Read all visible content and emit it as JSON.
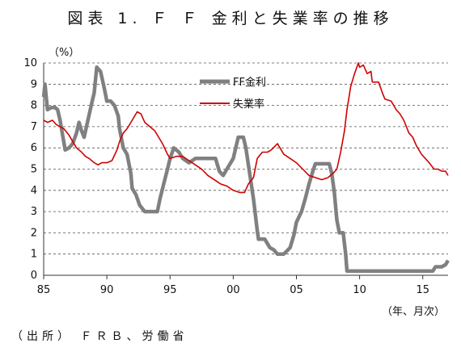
{
  "title": "図表 1. Ｆ Ｆ 金利と失業率の推移",
  "unit_label": "（%）",
  "x_unit_label": "（年、月次）",
  "source": "（出所） ＦＲＢ、労働省",
  "chart_data": {
    "type": "line",
    "ylim": [
      0,
      10
    ],
    "xlim": [
      1985,
      2017
    ],
    "y_ticks": [
      "0",
      "1",
      "2",
      "3",
      "4",
      "5",
      "6",
      "7",
      "8",
      "9",
      "10"
    ],
    "x_ticks": [
      {
        "x": 1985,
        "label": "85"
      },
      {
        "x": 1990,
        "label": "90"
      },
      {
        "x": 1995,
        "label": "95"
      },
      {
        "x": 2000,
        "label": "00"
      },
      {
        "x": 2005,
        "label": "05"
      },
      {
        "x": 2010,
        "label": "10"
      },
      {
        "x": 2015,
        "label": "15"
      }
    ],
    "grid": "horizontal-dashed",
    "legend_position": "top-center",
    "series": [
      {
        "name": "FF金利",
        "color": "#808080",
        "points": [
          [
            1985.0,
            8.4
          ],
          [
            1985.1,
            9.0
          ],
          [
            1985.3,
            7.8
          ],
          [
            1985.6,
            7.9
          ],
          [
            1985.9,
            7.9
          ],
          [
            1986.1,
            7.8
          ],
          [
            1986.3,
            7.3
          ],
          [
            1986.5,
            6.6
          ],
          [
            1986.7,
            5.9
          ],
          [
            1987.0,
            6.0
          ],
          [
            1987.3,
            6.2
          ],
          [
            1987.6,
            6.7
          ],
          [
            1987.8,
            7.2
          ],
          [
            1988.0,
            6.8
          ],
          [
            1988.2,
            6.5
          ],
          [
            1988.5,
            7.3
          ],
          [
            1988.8,
            8.1
          ],
          [
            1989.0,
            8.6
          ],
          [
            1989.2,
            9.8
          ],
          [
            1989.5,
            9.6
          ],
          [
            1989.8,
            8.8
          ],
          [
            1990.0,
            8.2
          ],
          [
            1990.3,
            8.2
          ],
          [
            1990.6,
            8.0
          ],
          [
            1990.9,
            7.5
          ],
          [
            1991.0,
            6.9
          ],
          [
            1991.3,
            6.0
          ],
          [
            1991.6,
            5.7
          ],
          [
            1991.9,
            4.8
          ],
          [
            1992.0,
            4.1
          ],
          [
            1992.3,
            3.8
          ],
          [
            1992.6,
            3.3
          ],
          [
            1993.0,
            3.0
          ],
          [
            1993.5,
            3.0
          ],
          [
            1994.0,
            3.0
          ],
          [
            1994.2,
            3.6
          ],
          [
            1994.5,
            4.3
          ],
          [
            1994.8,
            5.0
          ],
          [
            1995.0,
            5.5
          ],
          [
            1995.3,
            6.0
          ],
          [
            1995.7,
            5.8
          ],
          [
            1996.0,
            5.5
          ],
          [
            1996.5,
            5.3
          ],
          [
            1997.0,
            5.5
          ],
          [
            1997.5,
            5.5
          ],
          [
            1998.0,
            5.5
          ],
          [
            1998.6,
            5.5
          ],
          [
            1998.9,
            4.9
          ],
          [
            1999.2,
            4.7
          ],
          [
            1999.6,
            5.1
          ],
          [
            2000.0,
            5.5
          ],
          [
            2000.4,
            6.5
          ],
          [
            2000.8,
            6.5
          ],
          [
            2001.0,
            6.0
          ],
          [
            2001.3,
            4.8
          ],
          [
            2001.6,
            3.6
          ],
          [
            2001.9,
            2.1
          ],
          [
            2002.0,
            1.7
          ],
          [
            2002.5,
            1.7
          ],
          [
            2002.9,
            1.3
          ],
          [
            2003.2,
            1.2
          ],
          [
            2003.5,
            1.0
          ],
          [
            2004.0,
            1.0
          ],
          [
            2004.5,
            1.3
          ],
          [
            2004.8,
            1.9
          ],
          [
            2005.0,
            2.5
          ],
          [
            2005.4,
            3.0
          ],
          [
            2005.7,
            3.6
          ],
          [
            2006.0,
            4.3
          ],
          [
            2006.3,
            4.9
          ],
          [
            2006.5,
            5.25
          ],
          [
            2007.0,
            5.25
          ],
          [
            2007.6,
            5.25
          ],
          [
            2007.8,
            4.8
          ],
          [
            2008.0,
            3.9
          ],
          [
            2008.2,
            2.6
          ],
          [
            2008.4,
            2.0
          ],
          [
            2008.7,
            2.0
          ],
          [
            2008.9,
            1.0
          ],
          [
            2009.0,
            0.2
          ],
          [
            2010.0,
            0.2
          ],
          [
            2012.0,
            0.2
          ],
          [
            2014.0,
            0.2
          ],
          [
            2015.8,
            0.2
          ],
          [
            2016.0,
            0.4
          ],
          [
            2016.5,
            0.4
          ],
          [
            2016.8,
            0.5
          ],
          [
            2017.0,
            0.7
          ]
        ]
      },
      {
        "name": "失業率",
        "color": "#d00000",
        "points": [
          [
            1985.0,
            7.3
          ],
          [
            1985.3,
            7.2
          ],
          [
            1985.7,
            7.3
          ],
          [
            1986.0,
            7.1
          ],
          [
            1986.3,
            7.0
          ],
          [
            1986.6,
            6.9
          ],
          [
            1987.0,
            6.6
          ],
          [
            1987.3,
            6.3
          ],
          [
            1987.6,
            6.0
          ],
          [
            1988.0,
            5.8
          ],
          [
            1988.3,
            5.6
          ],
          [
            1988.6,
            5.5
          ],
          [
            1989.0,
            5.3
          ],
          [
            1989.3,
            5.2
          ],
          [
            1989.6,
            5.3
          ],
          [
            1990.0,
            5.3
          ],
          [
            1990.4,
            5.4
          ],
          [
            1990.8,
            5.9
          ],
          [
            1991.0,
            6.3
          ],
          [
            1991.3,
            6.7
          ],
          [
            1991.6,
            6.9
          ],
          [
            1992.0,
            7.3
          ],
          [
            1992.4,
            7.7
          ],
          [
            1992.7,
            7.6
          ],
          [
            1993.0,
            7.2
          ],
          [
            1993.4,
            7.0
          ],
          [
            1993.8,
            6.8
          ],
          [
            1994.0,
            6.6
          ],
          [
            1994.4,
            6.2
          ],
          [
            1994.8,
            5.7
          ],
          [
            1995.0,
            5.5
          ],
          [
            1995.5,
            5.6
          ],
          [
            1996.0,
            5.6
          ],
          [
            1996.5,
            5.4
          ],
          [
            1997.0,
            5.2
          ],
          [
            1997.5,
            5.0
          ],
          [
            1998.0,
            4.7
          ],
          [
            1998.5,
            4.5
          ],
          [
            1999.0,
            4.3
          ],
          [
            1999.5,
            4.2
          ],
          [
            2000.0,
            4.0
          ],
          [
            2000.5,
            3.9
          ],
          [
            2000.9,
            3.9
          ],
          [
            2001.2,
            4.3
          ],
          [
            2001.6,
            4.6
          ],
          [
            2001.9,
            5.5
          ],
          [
            2002.3,
            5.8
          ],
          [
            2002.7,
            5.8
          ],
          [
            2003.0,
            5.9
          ],
          [
            2003.5,
            6.2
          ],
          [
            2003.8,
            5.9
          ],
          [
            2004.0,
            5.7
          ],
          [
            2004.5,
            5.5
          ],
          [
            2005.0,
            5.3
          ],
          [
            2005.5,
            5.0
          ],
          [
            2006.0,
            4.7
          ],
          [
            2006.5,
            4.6
          ],
          [
            2007.0,
            4.5
          ],
          [
            2007.5,
            4.6
          ],
          [
            2007.9,
            4.8
          ],
          [
            2008.2,
            5.0
          ],
          [
            2008.5,
            5.8
          ],
          [
            2008.8,
            6.8
          ],
          [
            2009.0,
            7.8
          ],
          [
            2009.3,
            8.9
          ],
          [
            2009.6,
            9.5
          ],
          [
            2009.9,
            10.0
          ],
          [
            2010.0,
            9.8
          ],
          [
            2010.3,
            9.9
          ],
          [
            2010.6,
            9.5
          ],
          [
            2010.9,
            9.6
          ],
          [
            2011.0,
            9.1
          ],
          [
            2011.5,
            9.1
          ],
          [
            2011.8,
            8.6
          ],
          [
            2012.0,
            8.3
          ],
          [
            2012.5,
            8.2
          ],
          [
            2012.9,
            7.8
          ],
          [
            2013.2,
            7.6
          ],
          [
            2013.5,
            7.3
          ],
          [
            2013.9,
            6.7
          ],
          [
            2014.2,
            6.5
          ],
          [
            2014.5,
            6.1
          ],
          [
            2014.9,
            5.7
          ],
          [
            2015.2,
            5.5
          ],
          [
            2015.5,
            5.3
          ],
          [
            2015.9,
            5.0
          ],
          [
            2016.2,
            5.0
          ],
          [
            2016.5,
            4.9
          ],
          [
            2016.8,
            4.9
          ],
          [
            2017.0,
            4.7
          ]
        ]
      }
    ]
  }
}
